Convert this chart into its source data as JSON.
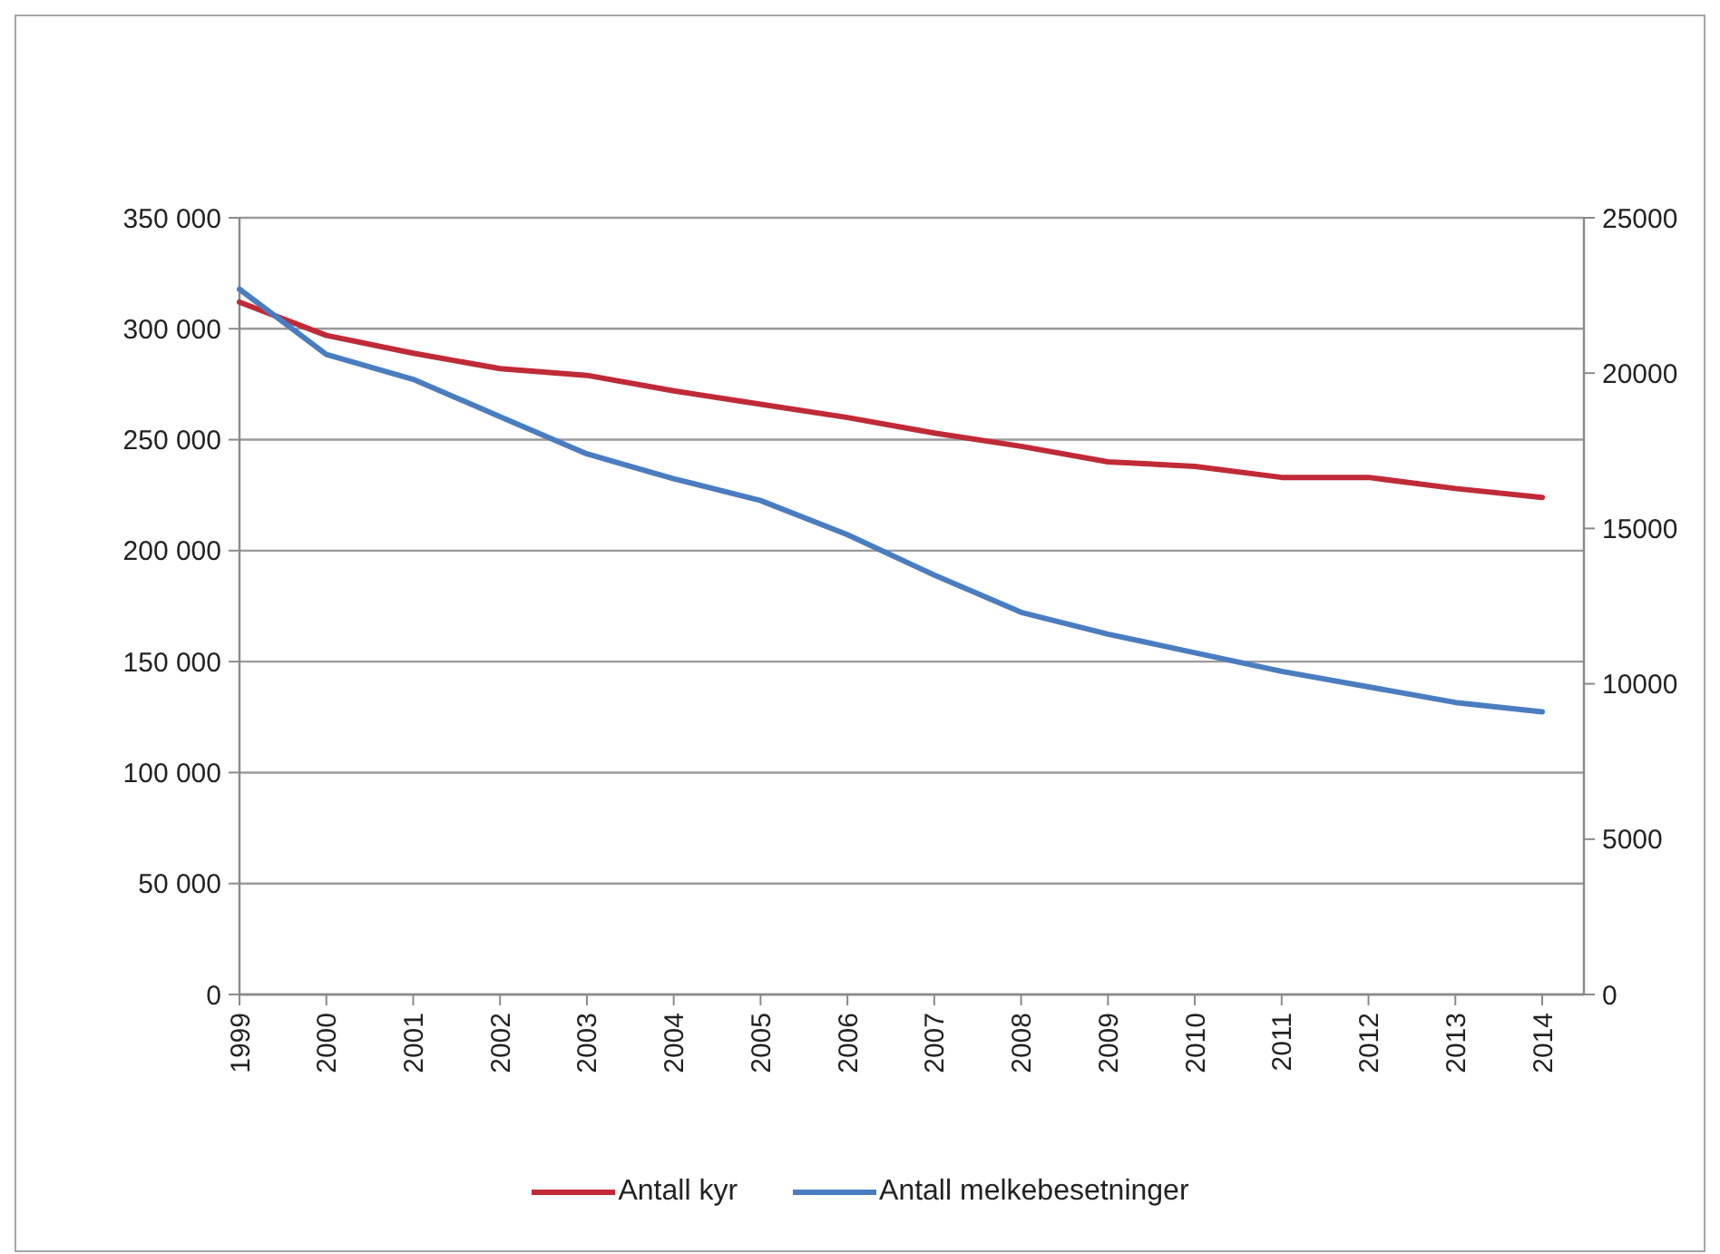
{
  "chart_data": {
    "type": "line",
    "categories": [
      "1999",
      "2000",
      "2001",
      "2002",
      "2003",
      "2004",
      "2005",
      "2006",
      "2007",
      "2008",
      "2009",
      "2010",
      "2011",
      "2012",
      "2013",
      "2014"
    ],
    "series": [
      {
        "name": "Antall kyr",
        "color": "#c02a37",
        "values": [
          312000,
          297000,
          289000,
          282000,
          279000,
          272000,
          266000,
          260000,
          253000,
          247000,
          240000,
          238000,
          233000,
          233000,
          228000,
          224000
        ]
      },
      {
        "name": "Antall melkebesetninger",
        "color": "#4a7dc0",
        "axis": "y2",
        "values": [
          22700,
          20600,
          19800,
          18600,
          17400,
          16600,
          15900,
          14800,
          13500,
          12300,
          11600,
          11000,
          10400,
          9900,
          9400,
          9100
        ]
      }
    ],
    "ylim": [
      0,
      350000
    ],
    "yticks": [
      0,
      {
        "value": 50000,
        "label": "50 000"
      },
      {
        "value": 100000,
        "label": "100 000"
      },
      {
        "value": 150000,
        "label": "150 000"
      },
      {
        "value": 200000,
        "label": "200 000"
      },
      {
        "value": 250000,
        "label": "250 000"
      },
      {
        "value": 300000,
        "label": "300 000"
      },
      {
        "value": 350000,
        "label": "350 000"
      }
    ],
    "y2lim": [
      0,
      25000
    ],
    "y2ticks": [
      0,
      5000,
      10000,
      15000,
      20000,
      25000
    ],
    "grid": "y",
    "legend": "bottom"
  }
}
